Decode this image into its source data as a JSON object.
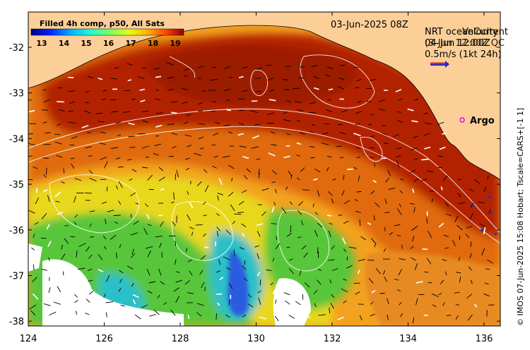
{
  "map": {
    "colorbar_title": "Filled 4h comp, p50, All Sats",
    "colorbar_ticks": [
      "13",
      "14",
      "15",
      "16",
      "17",
      "18",
      "19"
    ],
    "date_label": "03-Jun-2025 08Z",
    "overlay_title_a": "NRT oceanCurrent",
    "overlay_title_b": "Velocity",
    "overlay_line2": "04-Jun 12:00Z",
    "overlay_line2b": "(3-Jun 12:00Z QC",
    "overlay_line3": "0.5m/s (1kt 24h)",
    "argo_label": "Argo",
    "credit": "© IMOS 07-Jun-2025 15:08 Hobart; Tscale=CARS+[-1 1]",
    "lat_ticks": [
      "-32",
      "-33",
      "-34",
      "-35",
      "-36",
      "-37",
      "-38"
    ],
    "lon_ticks": [
      "124",
      "126",
      "128",
      "130",
      "132",
      "134",
      "136"
    ],
    "colors": {
      "land": "#fccf98",
      "hot": "#b32000",
      "warm": "#e06a10",
      "mid": "#f2a21f",
      "yellow": "#e8d81c",
      "green": "#58c63a",
      "cyan": "#2cc0c8",
      "blue": "#2b5ce0"
    }
  }
}
